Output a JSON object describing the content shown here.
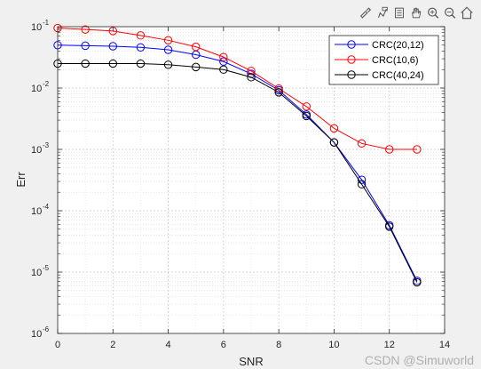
{
  "toolbar": {
    "icons": [
      "brush-icon",
      "data-tip-icon",
      "rotate-icon",
      "pan-icon",
      "zoom-in-icon",
      "zoom-out-icon",
      "home-icon"
    ]
  },
  "watermark": "CSDN @Simuworld",
  "chart_data": {
    "type": "line",
    "xlabel": "SNR",
    "ylabel": "Err",
    "xlim": [
      0,
      14
    ],
    "ylim": [
      1e-06,
      0.1
    ],
    "yscale": "log",
    "grid": "on (major and minor)",
    "legend_position": "top-right",
    "x_ticks": [
      "0",
      "2",
      "4",
      "6",
      "8",
      "10",
      "12",
      "14"
    ],
    "y_ticks": [
      "-6",
      "-5",
      "-4",
      "-3",
      "-2",
      "-1"
    ],
    "x": [
      0,
      1,
      2,
      3,
      4,
      5,
      6,
      7,
      8,
      9,
      10,
      11,
      12,
      13
    ],
    "series": [
      {
        "name": "CRC(20,12)",
        "color": "#0000ff",
        "marker": "circle",
        "values": [
          0.05,
          0.049,
          0.048,
          0.046,
          0.042,
          0.035,
          0.027,
          0.017,
          0.0092,
          0.0037,
          0.0013,
          0.00032,
          5.8e-05,
          7.2e-06
        ]
      },
      {
        "name": "CRC(10,6)",
        "color": "#ff0000",
        "marker": "circle",
        "values": [
          0.095,
          0.09,
          0.085,
          0.072,
          0.06,
          0.047,
          0.032,
          0.019,
          0.0098,
          0.005,
          0.0022,
          0.00125,
          0.001,
          0.001
        ]
      },
      {
        "name": "CRC(40,24)",
        "color": "#000000",
        "marker": "circle",
        "values": [
          0.025,
          0.025,
          0.025,
          0.025,
          0.024,
          0.022,
          0.02,
          0.015,
          0.0085,
          0.0035,
          0.0013,
          0.00027,
          5.5e-05,
          6.8e-06
        ]
      }
    ]
  }
}
